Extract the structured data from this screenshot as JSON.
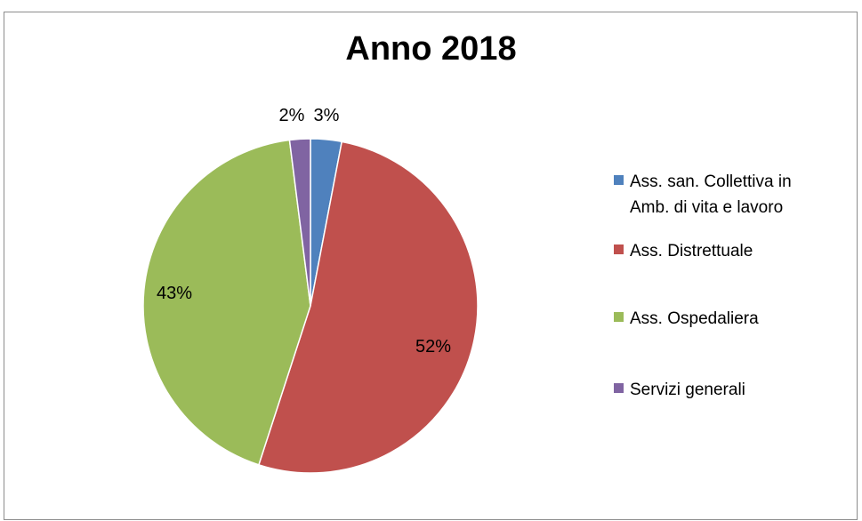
{
  "chart_data": {
    "type": "pie",
    "title": "Anno 2018",
    "categories": [
      "Ass. san. Collettiva in Amb. di vita e lavoro",
      "Ass. Distrettuale",
      "Ass. Ospedaliera",
      "Servizi generali"
    ],
    "values": [
      3,
      52,
      43,
      2
    ],
    "labels": [
      "3%",
      "52%",
      "43%",
      "2%"
    ],
    "colors": [
      "#4f81bd",
      "#c0504d",
      "#9bbb59",
      "#8064a2"
    ],
    "legend_position": "right",
    "start_angle": "12 o'clock",
    "direction": "clockwise"
  },
  "legend": [
    {
      "lines": [
        "Ass. san. Collettiva in",
        "Amb. di vita e lavoro"
      ],
      "color": "#4f81bd"
    },
    {
      "lines": [
        "Ass. Distrettuale"
      ],
      "color": "#c0504d"
    },
    {
      "lines": [
        "Ass. Ospedaliera"
      ],
      "color": "#9bbb59"
    },
    {
      "lines": [
        "Servizi generali"
      ],
      "color": "#8064a2"
    }
  ]
}
